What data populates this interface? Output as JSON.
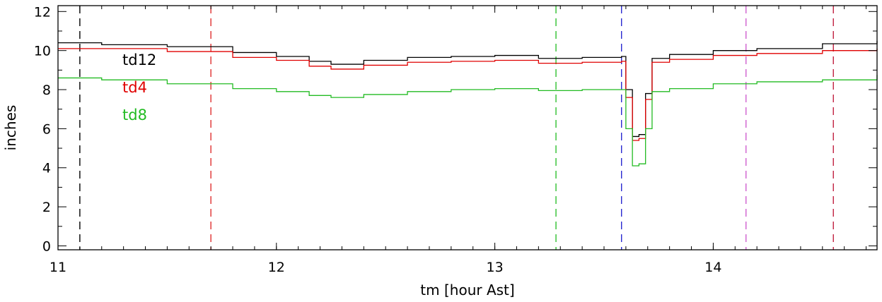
{
  "chart_data": {
    "type": "line",
    "title": "",
    "xlabel": "tm [hour Ast]",
    "ylabel": "inches",
    "xlim": [
      11.0,
      14.75
    ],
    "ylim": [
      -0.2,
      12.3
    ],
    "x_ticks": [
      11,
      12,
      13,
      14
    ],
    "x_tick_labels": [
      "11",
      "12",
      "13",
      "14"
    ],
    "y_ticks": [
      0,
      2,
      4,
      6,
      8,
      10,
      12
    ],
    "y_tick_labels": [
      "0",
      "2",
      "4",
      "6",
      "8",
      "10",
      "12"
    ],
    "grid": false,
    "legend_position": "top-left",
    "series": [
      {
        "name": "td12",
        "color": "#000000",
        "points": [
          [
            11.0,
            10.4
          ],
          [
            11.2,
            10.3
          ],
          [
            11.5,
            10.2
          ],
          [
            11.8,
            9.9
          ],
          [
            12.0,
            9.7
          ],
          [
            12.15,
            9.45
          ],
          [
            12.25,
            9.3
          ],
          [
            12.4,
            9.5
          ],
          [
            12.6,
            9.65
          ],
          [
            12.8,
            9.7
          ],
          [
            13.0,
            9.75
          ],
          [
            13.2,
            9.6
          ],
          [
            13.4,
            9.65
          ],
          [
            13.58,
            9.7
          ],
          [
            13.6,
            8.0
          ],
          [
            13.63,
            5.6
          ],
          [
            13.66,
            5.7
          ],
          [
            13.69,
            7.8
          ],
          [
            13.72,
            9.6
          ],
          [
            13.8,
            9.8
          ],
          [
            14.0,
            10.0
          ],
          [
            14.2,
            10.1
          ],
          [
            14.5,
            10.35
          ],
          [
            14.75,
            10.5
          ]
        ]
      },
      {
        "name": "td4",
        "color": "#e00000",
        "points": [
          [
            11.0,
            10.1
          ],
          [
            11.2,
            10.1
          ],
          [
            11.5,
            9.95
          ],
          [
            11.8,
            9.65
          ],
          [
            12.0,
            9.5
          ],
          [
            12.15,
            9.2
          ],
          [
            12.25,
            9.05
          ],
          [
            12.4,
            9.25
          ],
          [
            12.6,
            9.4
          ],
          [
            12.8,
            9.45
          ],
          [
            13.0,
            9.5
          ],
          [
            13.2,
            9.35
          ],
          [
            13.4,
            9.4
          ],
          [
            13.58,
            9.45
          ],
          [
            13.6,
            7.6
          ],
          [
            13.63,
            5.4
          ],
          [
            13.66,
            5.5
          ],
          [
            13.69,
            7.5
          ],
          [
            13.72,
            9.4
          ],
          [
            13.8,
            9.55
          ],
          [
            14.0,
            9.75
          ],
          [
            14.2,
            9.85
          ],
          [
            14.5,
            10.0
          ],
          [
            14.75,
            10.1
          ]
        ]
      },
      {
        "name": "td8",
        "color": "#22bb22",
        "points": [
          [
            11.0,
            8.6
          ],
          [
            11.2,
            8.5
          ],
          [
            11.5,
            8.3
          ],
          [
            11.8,
            8.05
          ],
          [
            12.0,
            7.9
          ],
          [
            12.15,
            7.7
          ],
          [
            12.25,
            7.6
          ],
          [
            12.4,
            7.75
          ],
          [
            12.6,
            7.9
          ],
          [
            12.8,
            8.0
          ],
          [
            13.0,
            8.05
          ],
          [
            13.2,
            7.95
          ],
          [
            13.4,
            8.0
          ],
          [
            13.58,
            8.0
          ],
          [
            13.6,
            6.0
          ],
          [
            13.63,
            4.1
          ],
          [
            13.66,
            4.2
          ],
          [
            13.69,
            6.0
          ],
          [
            13.72,
            7.9
          ],
          [
            13.8,
            8.05
          ],
          [
            14.0,
            8.3
          ],
          [
            14.2,
            8.4
          ],
          [
            14.5,
            8.5
          ],
          [
            14.75,
            8.75
          ]
        ]
      }
    ],
    "vertical_lines": [
      {
        "x": 11.1,
        "color": "#000000"
      },
      {
        "x": 11.7,
        "color": "#e03030"
      },
      {
        "x": 13.28,
        "color": "#30c030"
      },
      {
        "x": 13.58,
        "color": "#2a2ad0"
      },
      {
        "x": 14.15,
        "color": "#d060d0"
      },
      {
        "x": 14.55,
        "color": "#c02040"
      }
    ]
  }
}
